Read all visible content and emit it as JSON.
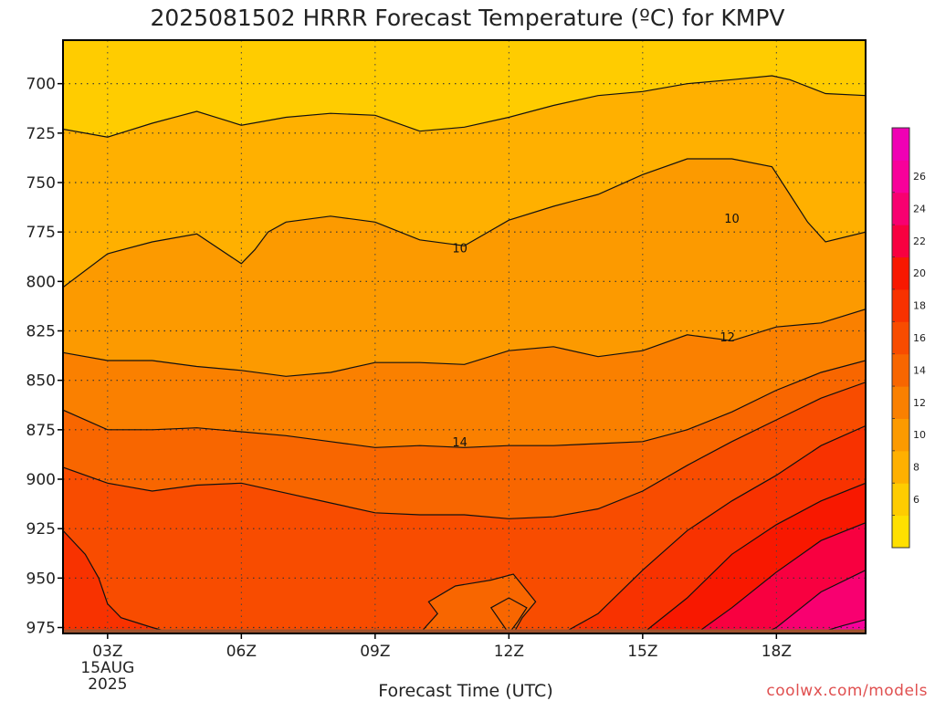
{
  "title": "2025081502 HRRR Forecast Temperature (ºC) for KMPV",
  "credit": "coolwx.com/models",
  "chart_data": {
    "type": "heatmap",
    "title": "2025081502 HRRR Forecast Temperature (ºC) for KMPV",
    "xlabel": "Forecast Time (UTC)",
    "ylabel": "",
    "x_unit": "hour UTC, 15 AUG 2025",
    "xlim": [
      2,
      20
    ],
    "ylim": [
      978,
      678
    ],
    "y_reversed": true,
    "grid": true,
    "x_ticks": [
      {
        "x": 3,
        "label": "03Z",
        "sub": [
          "15AUG",
          "2025"
        ]
      },
      {
        "x": 6,
        "label": "06Z"
      },
      {
        "x": 9,
        "label": "09Z"
      },
      {
        "x": 12,
        "label": "12Z"
      },
      {
        "x": 15,
        "label": "15Z"
      },
      {
        "x": 18,
        "label": "18Z"
      }
    ],
    "y_ticks": [
      700,
      725,
      750,
      775,
      800,
      825,
      850,
      875,
      900,
      925,
      950,
      975
    ],
    "ground_level_hPa": 975,
    "colorbar": {
      "levels": [
        6,
        8,
        10,
        12,
        14,
        16,
        18,
        20,
        22,
        24,
        26
      ],
      "colors": [
        "#ffe000",
        "#ffcc00",
        "#ffb000",
        "#fc9a00",
        "#fa8000",
        "#f86600",
        "#f84c00",
        "#f83200",
        "#f81800",
        "#f80040",
        "#f80070",
        "#f8009a",
        "#f000b4"
      ]
    },
    "contour_labels": [
      {
        "text": "10",
        "x": 10.9,
        "p": 783
      },
      {
        "text": "10",
        "x": 17.0,
        "p": 768
      },
      {
        "text": "12",
        "x": 16.9,
        "p": 828
      },
      {
        "text": "14",
        "x": 10.9,
        "p": 881
      }
    ],
    "contours": [
      {
        "temp": 8,
        "points": [
          [
            2,
            723
          ],
          [
            3,
            727
          ],
          [
            4,
            720
          ],
          [
            5,
            714
          ],
          [
            6,
            721
          ],
          [
            7,
            717
          ],
          [
            8,
            715
          ],
          [
            9,
            716
          ],
          [
            10,
            724
          ],
          [
            11,
            722
          ],
          [
            12,
            717
          ],
          [
            13,
            711
          ],
          [
            14,
            706
          ],
          [
            15,
            704
          ],
          [
            16,
            700
          ],
          [
            17,
            698
          ],
          [
            17.9,
            696
          ],
          [
            18.3,
            698
          ],
          [
            19.1,
            705
          ],
          [
            20,
            706
          ]
        ]
      },
      {
        "temp": 10,
        "points": [
          [
            2,
            803
          ],
          [
            3,
            786
          ],
          [
            4,
            780
          ],
          [
            5,
            776
          ],
          [
            6,
            791
          ],
          [
            6.3,
            784
          ],
          [
            6.6,
            775
          ],
          [
            7,
            770
          ],
          [
            8,
            767
          ],
          [
            9,
            770
          ],
          [
            10,
            779
          ],
          [
            11,
            782
          ],
          [
            12,
            769
          ],
          [
            13,
            762
          ],
          [
            14,
            756
          ],
          [
            15,
            746
          ],
          [
            16,
            738
          ],
          [
            17,
            738
          ],
          [
            17.9,
            742
          ],
          [
            18.3,
            756
          ],
          [
            18.7,
            770
          ],
          [
            19.1,
            780
          ],
          [
            20,
            775
          ]
        ]
      },
      {
        "temp": 12,
        "points": [
          [
            2,
            836
          ],
          [
            3,
            840
          ],
          [
            4,
            840
          ],
          [
            5,
            843
          ],
          [
            6,
            845
          ],
          [
            7,
            848
          ],
          [
            8,
            846
          ],
          [
            9,
            841
          ],
          [
            10,
            841
          ],
          [
            11,
            842
          ],
          [
            12,
            835
          ],
          [
            13,
            833
          ],
          [
            14,
            838
          ],
          [
            15,
            835
          ],
          [
            16,
            827
          ],
          [
            17,
            830
          ],
          [
            18,
            823
          ],
          [
            19,
            821
          ],
          [
            20,
            814
          ]
        ]
      },
      {
        "temp": 14,
        "points": [
          [
            2,
            865
          ],
          [
            3,
            875
          ],
          [
            4,
            875
          ],
          [
            5,
            874
          ],
          [
            6,
            876
          ],
          [
            7,
            878
          ],
          [
            8,
            881
          ],
          [
            9,
            884
          ],
          [
            10,
            883
          ],
          [
            11,
            884
          ],
          [
            12,
            883
          ],
          [
            13,
            883
          ],
          [
            14,
            882
          ],
          [
            15,
            881
          ],
          [
            16,
            875
          ],
          [
            17,
            866
          ],
          [
            18,
            855
          ],
          [
            19,
            846
          ],
          [
            20,
            840
          ]
        ]
      },
      {
        "temp": 16,
        "points": [
          [
            2,
            894
          ],
          [
            3,
            902
          ],
          [
            4,
            906
          ],
          [
            5,
            903
          ],
          [
            6,
            902
          ],
          [
            7,
            907
          ],
          [
            8,
            912
          ],
          [
            9,
            917
          ],
          [
            10,
            918
          ],
          [
            11,
            918
          ],
          [
            12,
            920
          ],
          [
            13,
            919
          ],
          [
            14,
            915
          ],
          [
            15,
            906
          ],
          [
            16,
            893
          ],
          [
            17,
            881
          ],
          [
            18,
            870
          ],
          [
            19,
            859
          ],
          [
            20,
            851
          ]
        ]
      },
      {
        "temp": 18,
        "points": [
          [
            13.2,
            978
          ],
          [
            14,
            968
          ],
          [
            15,
            946
          ],
          [
            16,
            926
          ],
          [
            17,
            911
          ],
          [
            18,
            898
          ],
          [
            19,
            883
          ],
          [
            20,
            873
          ]
        ]
      },
      {
        "temp": 20,
        "points": [
          [
            15,
            978
          ],
          [
            16,
            960
          ],
          [
            17,
            938
          ],
          [
            18,
            923
          ],
          [
            19,
            911
          ],
          [
            20,
            902
          ]
        ]
      },
      {
        "temp": 22,
        "points": [
          [
            16.2,
            978
          ],
          [
            17,
            965
          ],
          [
            18,
            947
          ],
          [
            19,
            931
          ],
          [
            20,
            922
          ]
        ]
      },
      {
        "temp": 24,
        "points": [
          [
            17.7,
            978
          ],
          [
            18,
            975
          ],
          [
            19,
            957
          ],
          [
            20,
            946
          ]
        ]
      },
      {
        "temp": 26,
        "points": [
          [
            18.9,
            978
          ],
          [
            19.5,
            974
          ],
          [
            20,
            971
          ]
        ]
      },
      {
        "temp": 18,
        "points": [
          [
            2,
            926
          ],
          [
            2.5,
            938
          ],
          [
            2.8,
            950
          ],
          [
            3.0,
            963
          ],
          [
            3.3,
            970
          ],
          [
            4,
            975
          ],
          [
            4.5,
            978
          ]
        ]
      },
      {
        "temp": 16,
        "points": [
          [
            11.6,
            965
          ],
          [
            12,
            960
          ],
          [
            12.4,
            965
          ],
          [
            12.2,
            972
          ],
          [
            12,
            978
          ]
        ],
        "kind": "pocket"
      },
      {
        "temp": 16,
        "points": [
          [
            10,
            978
          ],
          [
            10.4,
            968
          ],
          [
            10.2,
            962
          ],
          [
            10.8,
            954
          ],
          [
            11.6,
            951
          ],
          [
            12.1,
            948
          ],
          [
            12.6,
            962
          ],
          [
            12.3,
            970
          ],
          [
            12.1,
            978
          ]
        ],
        "kind": "bubble"
      }
    ]
  }
}
